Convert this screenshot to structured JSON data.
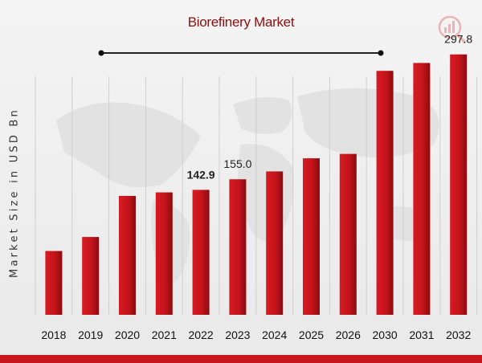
{
  "chart_data": {
    "type": "bar",
    "title": "Biorefinery Market",
    "xlabel": "",
    "ylabel": "Market Size in USD Bn",
    "categories": [
      "2018",
      "2019",
      "2020",
      "2021",
      "2022",
      "2023",
      "2024",
      "2025",
      "2026",
      "2030",
      "2031",
      "2032"
    ],
    "values": [
      73,
      89,
      136,
      140,
      142.9,
      155.0,
      164,
      179,
      184,
      279,
      288,
      297.8
    ],
    "data_labels": [
      null,
      null,
      null,
      null,
      "142.9",
      "155.0",
      null,
      null,
      null,
      null,
      null,
      "297.8"
    ],
    "ylim": [
      0,
      360
    ],
    "grid": "vertical",
    "legend": "none",
    "colors": {
      "bar": "#c8161d",
      "bar_dark": "#8a0c10",
      "title": "#8b1010",
      "band": "#c8161d"
    }
  }
}
